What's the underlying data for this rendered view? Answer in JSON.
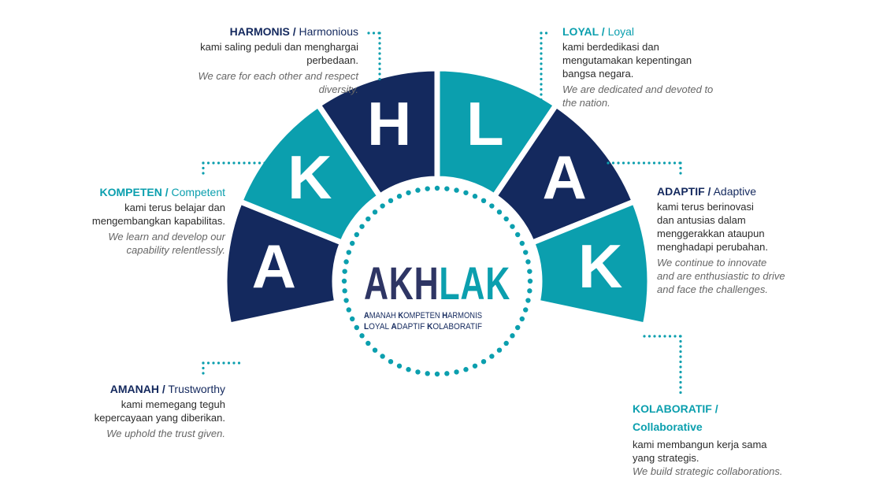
{
  "colors": {
    "navy": "#14295e",
    "teal": "#0b9fae",
    "text": "#2b2b2b",
    "muted": "#666666"
  },
  "logo": {
    "navy_part": "AKH",
    "teal_part": "LAK",
    "line1": [
      {
        "b": "A",
        "r": "MANAH "
      },
      {
        "b": "K",
        "r": "OMPETEN "
      },
      {
        "b": "H",
        "r": "ARMONIS"
      }
    ],
    "line2": [
      {
        "b": "L",
        "r": "OYAL "
      },
      {
        "b": "A",
        "r": "DAPTIF "
      },
      {
        "b": "K",
        "r": "OLABORATIF"
      }
    ]
  },
  "segments": [
    {
      "letter": "A",
      "color": "navy"
    },
    {
      "letter": "K",
      "color": "teal"
    },
    {
      "letter": "H",
      "color": "navy"
    },
    {
      "letter": "L",
      "color": "teal"
    },
    {
      "letter": "A",
      "color": "navy"
    },
    {
      "letter": "K",
      "color": "teal"
    }
  ],
  "values": {
    "harmonis": {
      "id": "HARMONIS /",
      "en_name": "Harmonious",
      "id_color": "navy",
      "desc": "kami saling peduli dan menghargai\nperbedaan.",
      "en": "We care for each other and  respect\ndiversity."
    },
    "loyal": {
      "id": "LOYAL /",
      "en_name": "Loyal",
      "id_color": "teal",
      "desc": "kami berdedikasi dan\nmengutamakan kepentingan\nbangsa negara.",
      "en": "We are dedicated and devoted to\nthe nation."
    },
    "kompeten": {
      "id": "KOMPETEN /",
      "en_name": "Competent",
      "id_color": "teal",
      "desc": "kami terus belajar dan\nmengembangkan kapabilitas.",
      "en": "We learn and develop our\ncapability relentlessly."
    },
    "adaptif": {
      "id": "ADAPTIF /",
      "en_name": "Adaptive",
      "id_color": "navy",
      "desc": "kami terus berinovasi\ndan antusias dalam\nmenggerakkan  ataupun\nmenghadapi perubahan.",
      "en": "We continue to innovate\nand are enthusiastic to drive\nand face the challenges."
    },
    "amanah": {
      "id": "AMANAH /",
      "en_name": "Trustworthy",
      "id_color": "navy",
      "desc": "kami memegang teguh\nkepercayaan yang diberikan.",
      "en": "We uphold the trust given."
    },
    "kolaboratif": {
      "id": "KOLABORATIF /",
      "en_name": "Collaborative",
      "id_color": "teal",
      "desc": "kami membangun kerja sama\nyang strategis.",
      "en": "We build strategic collaborations."
    }
  }
}
